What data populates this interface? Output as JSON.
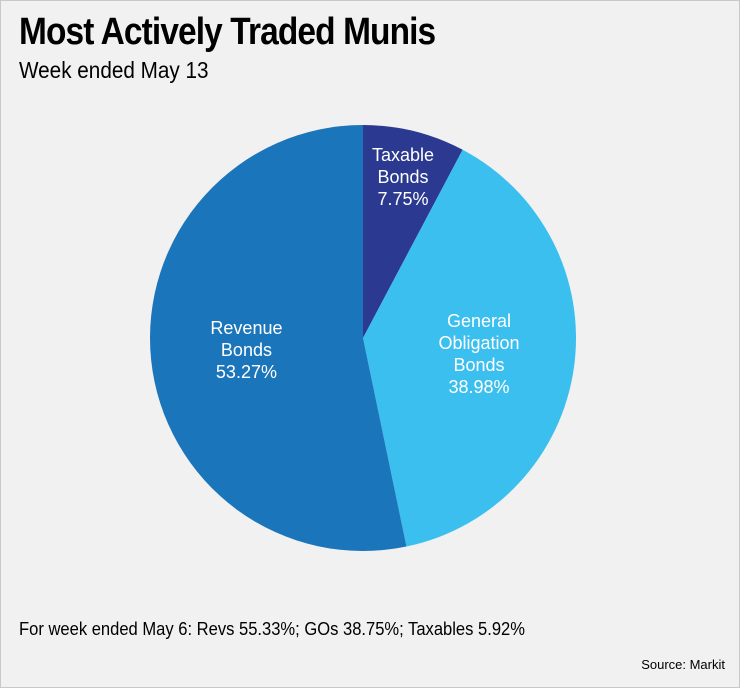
{
  "chart_data": {
    "type": "pie",
    "title": "Most Actively Traded Munis",
    "subtitle": "Week ended May 13",
    "categories": [
      "Taxable Bonds",
      "General Obligation Bonds",
      "Revenue Bonds"
    ],
    "values": [
      7.75,
      38.98,
      53.27
    ],
    "value_labels": [
      "7.75%",
      "38.98%",
      "53.27%"
    ],
    "colors": [
      "#2b3990",
      "#3bbfef",
      "#1b75bb"
    ],
    "note": "For week ended May 6: Revs 55.33%; GOs 38.75%; Taxables 5.92%",
    "source": "Source: Markit"
  }
}
